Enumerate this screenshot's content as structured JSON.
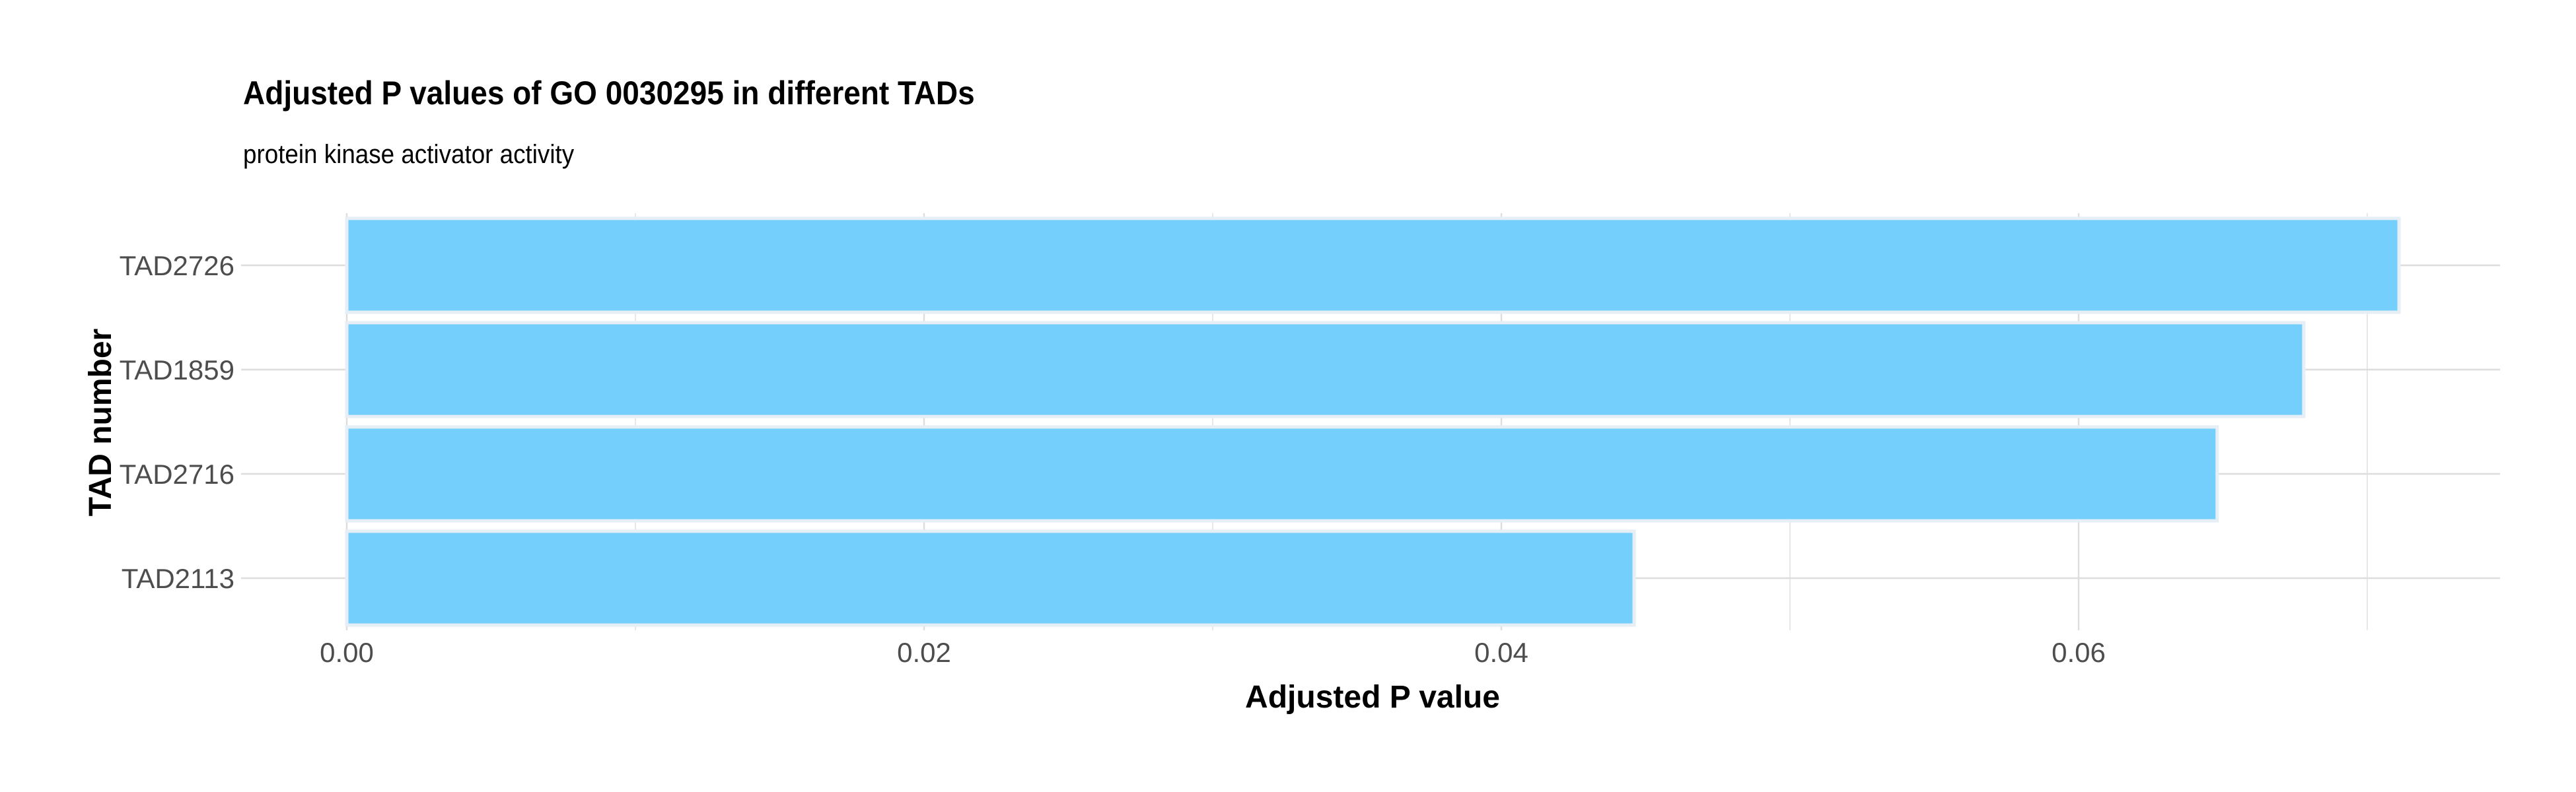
{
  "chart_data": {
    "type": "bar",
    "orientation": "horizontal",
    "title": "Adjusted P values of GO 0030295 in different TADs",
    "subtitle": "protein kinase activator activity",
    "xlabel": "Adjusted P value",
    "ylabel": "TAD number",
    "categories": [
      "TAD2726",
      "TAD1859",
      "TAD2716",
      "TAD2113"
    ],
    "values": [
      0.0711,
      0.0678,
      0.0648,
      0.0446
    ],
    "xlim": [
      0,
      0.0746
    ],
    "xticks": [
      "0.00",
      "0.02",
      "0.04",
      "0.06"
    ],
    "xtick_values": [
      0,
      0.02,
      0.04,
      0.06
    ],
    "grid": true,
    "bar_color": "#74CFFC",
    "bar_border_color": "#E6EEF6",
    "grid_color": "#DDDDDD"
  }
}
